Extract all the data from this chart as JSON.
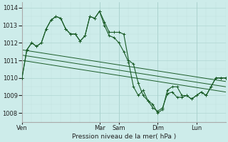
{
  "xlabel": "Pression niveau de la mer( hPa )",
  "bg_color": "#cdecea",
  "grid_color_minor": "#c0e0dc",
  "grid_color_major": "#a8d0cc",
  "line_color": "#1a5c28",
  "ylim": [
    1007.5,
    1014.3
  ],
  "yticks": [
    1008,
    1009,
    1010,
    1011,
    1012,
    1013,
    1014
  ],
  "xlim": [
    0,
    252
  ],
  "x_tick_positions": [
    0,
    96,
    120,
    168,
    216
  ],
  "x_tick_labels": [
    "Ven",
    "Mar",
    "Sam",
    "Dim",
    "Lun"
  ],
  "vline_positions": [
    0,
    96,
    120,
    168,
    216
  ],
  "trend_lines": [
    {
      "x": [
        0,
        252
      ],
      "y": [
        1011.6,
        1009.8
      ]
    },
    {
      "x": [
        0,
        252
      ],
      "y": [
        1011.3,
        1009.5
      ]
    },
    {
      "x": [
        0,
        252
      ],
      "y": [
        1011.0,
        1009.2
      ]
    }
  ],
  "main_line_x": [
    0,
    6,
    12,
    18,
    24,
    30,
    36,
    42,
    48,
    54,
    60,
    66,
    72,
    78,
    84,
    90,
    96,
    102,
    108,
    114,
    120,
    126,
    132,
    138,
    144,
    150,
    156,
    162,
    168,
    174,
    180,
    186,
    192,
    198,
    204,
    210,
    216,
    222,
    228,
    234,
    240,
    246,
    252
  ],
  "main_line_y": [
    1010.0,
    1011.6,
    1012.0,
    1011.8,
    1012.0,
    1012.8,
    1013.3,
    1013.5,
    1013.4,
    1012.8,
    1012.5,
    1012.5,
    1012.1,
    1012.4,
    1013.5,
    1013.4,
    1013.8,
    1013.2,
    1012.6,
    1012.6,
    1012.6,
    1012.5,
    1011.0,
    1010.8,
    1009.7,
    1009.0,
    1008.7,
    1008.5,
    1008.0,
    1008.2,
    1009.3,
    1009.5,
    1009.5,
    1009.0,
    1009.0,
    1008.8,
    1009.0,
    1009.2,
    1009.0,
    1009.5,
    1010.0,
    1010.0,
    1010.0
  ],
  "main_line2_x": [
    0,
    6,
    12,
    18,
    24,
    30,
    36,
    42,
    48,
    54,
    60,
    66,
    72,
    78,
    84,
    90,
    96,
    102,
    108,
    114,
    120,
    126,
    132,
    138,
    144,
    150,
    156,
    162,
    168,
    174,
    180,
    186,
    192,
    198,
    204,
    210,
    216,
    222,
    228,
    234,
    240,
    246,
    252
  ],
  "main_line2_y": [
    1010.0,
    1011.6,
    1012.0,
    1011.8,
    1012.0,
    1012.8,
    1013.3,
    1013.5,
    1013.4,
    1012.8,
    1012.5,
    1012.5,
    1012.1,
    1012.4,
    1013.5,
    1013.4,
    1013.8,
    1013.0,
    1012.4,
    1012.3,
    1012.0,
    1011.5,
    1010.9,
    1009.5,
    1009.0,
    1009.3,
    1008.7,
    1008.3,
    1008.1,
    1008.3,
    1009.1,
    1009.2,
    1008.9,
    1008.9,
    1009.0,
    1008.8,
    1009.0,
    1009.2,
    1009.0,
    1009.5,
    1010.0,
    1010.0,
    1010.0
  ]
}
